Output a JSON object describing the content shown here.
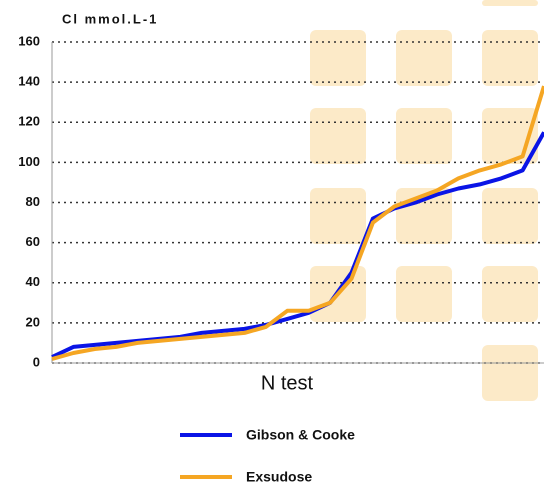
{
  "chart_data": {
    "type": "line",
    "title": "Cl mmol.L-1",
    "xlabel": "N test",
    "ylim": [
      0,
      160
    ],
    "yticks": [
      0,
      20,
      40,
      60,
      80,
      100,
      120,
      140,
      160
    ],
    "grid": true,
    "series": [
      {
        "name": "Gibson & Cooke",
        "color": "#0a14e6",
        "values": [
          3,
          8,
          9,
          10,
          11,
          12,
          13,
          15,
          16,
          17,
          19,
          22,
          25,
          30,
          45,
          72,
          77,
          80,
          84,
          87,
          89,
          92,
          96,
          115
        ]
      },
      {
        "name": "Exsudose",
        "color": "#f5a623",
        "values": [
          2,
          5,
          7,
          8,
          10,
          11,
          12,
          13,
          14,
          15,
          18,
          26,
          26,
          30,
          42,
          70,
          78,
          82,
          86,
          92,
          96,
          99,
          103,
          138
        ]
      }
    ]
  }
}
